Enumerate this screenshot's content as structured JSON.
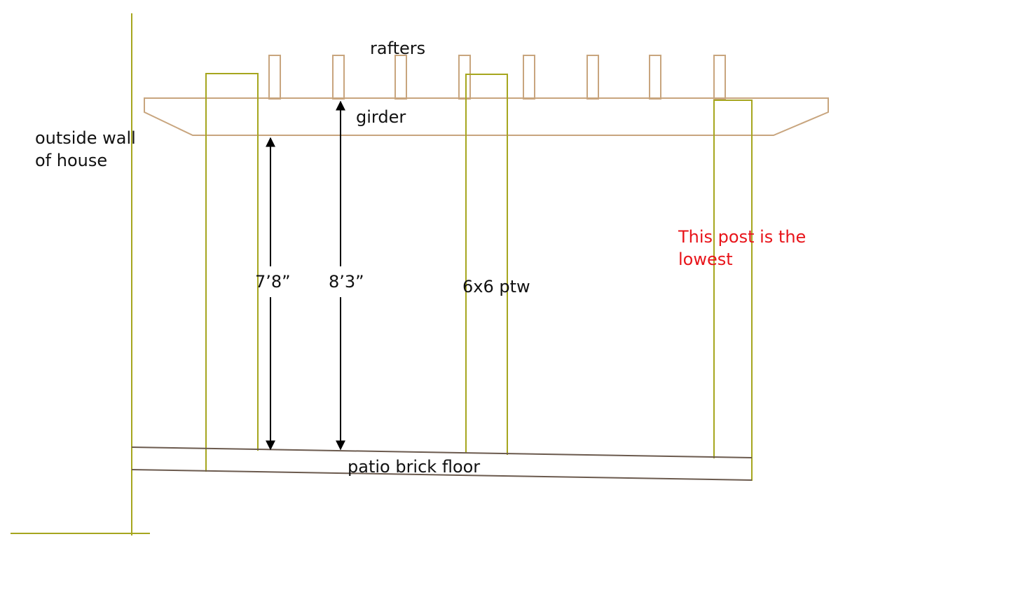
{
  "labels": {
    "rafters": "rafters",
    "girder": "girder",
    "wall_line1": "outside wall",
    "wall_line2": "of house",
    "dim_left": "7’8”",
    "dim_right": "8’3”",
    "post_size": "6x6 ptw",
    "note_line1": "This post is the",
    "note_line2": "lowest",
    "floor": "patio brick floor"
  },
  "colors": {
    "wood": "#c8a57e",
    "post": "#a6a61e",
    "floor": "#6b5a4e",
    "dimension": "#000000",
    "note": "#e8141a",
    "text": "#111111"
  }
}
